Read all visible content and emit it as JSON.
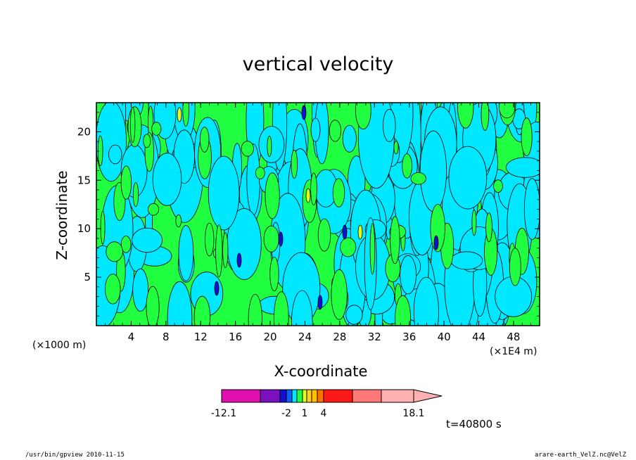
{
  "chart_data": {
    "type": "heatmap",
    "title": "vertical velocity",
    "xlabel": "X-coordinate",
    "ylabel": "Z-coordinate",
    "x_unit_left": "(×1000 m)",
    "x_unit_right": "(×1E4 m)",
    "xticks": [
      "4",
      "8",
      "12",
      "16",
      "20",
      "24",
      "28",
      "32",
      "36",
      "40",
      "44",
      "48"
    ],
    "yticks": [
      "5",
      "10",
      "15",
      "20"
    ],
    "xlim": [
      0,
      51
    ],
    "ylim": [
      0,
      23
    ],
    "colorbar": {
      "colors": [
        "#e010b0",
        "#7a10c0",
        "#1010d0",
        "#1060ff",
        "#00e8ff",
        "#20ff40",
        "#e0ff20",
        "#ffd020",
        "#ffc000",
        "#ff7000",
        "#ff1818",
        "#ff7878",
        "#ffb0b0"
      ],
      "labels": [
        "-12.1",
        "-2",
        "1",
        "4",
        "18.1"
      ],
      "dominant_levels": {
        "negative_small": "#00e8ff",
        "positive_small": "#20ff40"
      }
    },
    "time": "t=40800 s"
  },
  "footer": {
    "left": "/usr/bin/gpview   2010-11-15",
    "right": "arare-earth_VelZ.nc@VelZ"
  }
}
